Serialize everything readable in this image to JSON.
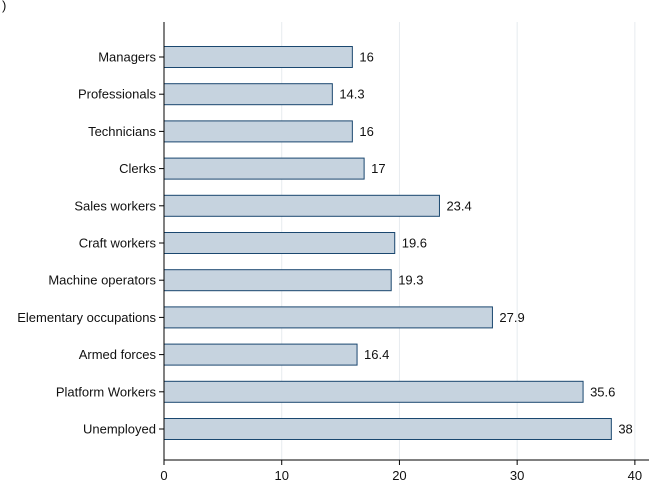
{
  "corner_mark": ")",
  "chart_data": {
    "type": "bar",
    "orientation": "horizontal",
    "categories": [
      "Managers",
      "Professionals",
      "Technicians",
      "Clerks",
      "Sales workers",
      "Craft workers",
      "Machine operators",
      "Elementary occupations",
      "Armed forces",
      "Platform Workers",
      "Unemployed"
    ],
    "values": [
      16,
      14.3,
      16,
      17,
      23.4,
      19.6,
      19.3,
      27.9,
      16.4,
      35.6,
      38
    ],
    "value_labels": [
      "16",
      "14.3",
      "16",
      "17",
      "23.4",
      "19.6",
      "19.3",
      "27.9",
      "16.4",
      "35.6",
      "38"
    ],
    "title": "",
    "xlabel": "",
    "ylabel": "",
    "xlim": [
      0,
      41.2
    ],
    "xticks": [
      0,
      10,
      20,
      30,
      40
    ],
    "xtick_labels": [
      "0",
      "10",
      "20",
      "30",
      "40"
    ],
    "grid": true,
    "legend": "none",
    "colors": {
      "bar_fill": "#c6d3df",
      "bar_stroke": "#1a476f",
      "grid": "#e6ebef",
      "axis": "#000000"
    }
  }
}
